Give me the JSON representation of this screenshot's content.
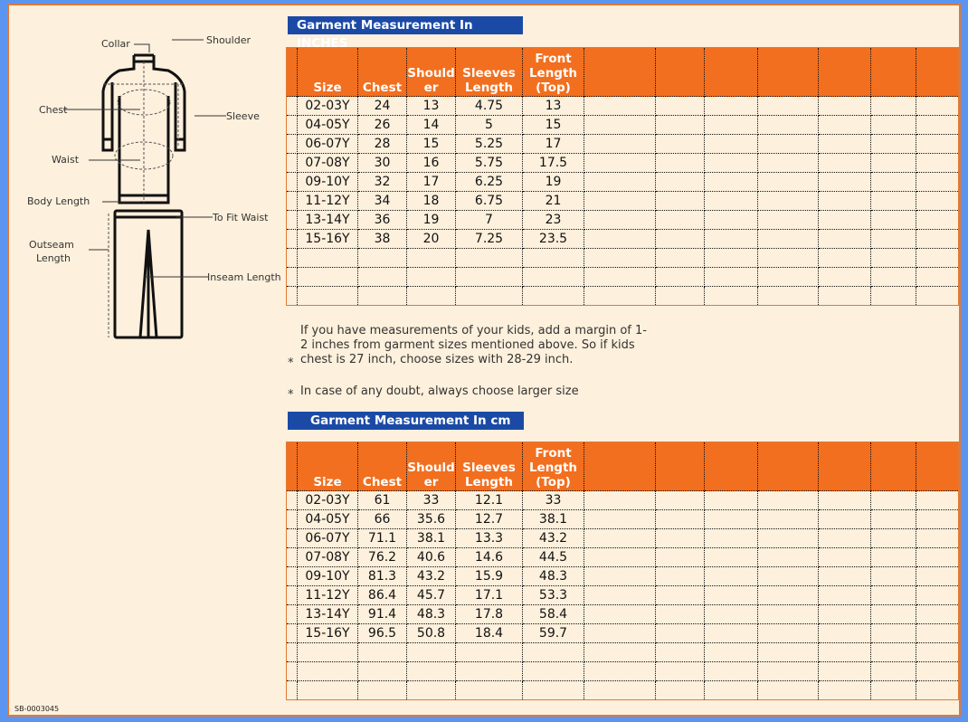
{
  "diagram": {
    "labels": {
      "collar": "Collar",
      "shoulder": "Shoulder",
      "chest": "Chest",
      "sleeve": "Sleeve",
      "waist": "Waist",
      "body_length": "Body Length",
      "to_fit_waist": "To Fit Waist",
      "outseam_1": "Outseam",
      "outseam_2": "Length",
      "inseam": "Inseam Length"
    }
  },
  "inches": {
    "title": "Garment Measurement In INCHES",
    "headers": [
      "Size",
      "Chest",
      "Should er",
      "Sleeves Length",
      "Front Length (Top)"
    ],
    "rows": [
      [
        "02-03Y",
        "24",
        "13",
        "4.75",
        "13"
      ],
      [
        "04-05Y",
        "26",
        "14",
        "5",
        "15"
      ],
      [
        "06-07Y",
        "28",
        "15",
        "5.25",
        "17"
      ],
      [
        "07-08Y",
        "30",
        "16",
        "5.75",
        "17.5"
      ],
      [
        "09-10Y",
        "32",
        "17",
        "6.25",
        "19"
      ],
      [
        "11-12Y",
        "34",
        "18",
        "6.75",
        "21"
      ],
      [
        "13-14Y",
        "36",
        "19",
        "7",
        "23"
      ],
      [
        "15-16Y",
        "38",
        "20",
        "7.25",
        "23.5"
      ]
    ]
  },
  "notes": [
    "If you have measurements of your kids, add a margin of 1-2 inches from garment sizes mentioned above. So if kids chest is 27 inch, choose sizes with 28-29 inch.",
    "In case of any doubt, always choose larger size"
  ],
  "note_marker": "*",
  "cm": {
    "title": "Garment Measurement In cm",
    "headers": [
      "Size",
      "Chest",
      "Should er",
      "Sleeves Length",
      "Front Length (Top)"
    ],
    "rows": [
      [
        "02-03Y",
        "61",
        "33",
        "12.1",
        "33"
      ],
      [
        "04-05Y",
        "66",
        "35.6",
        "12.7",
        "38.1"
      ],
      [
        "06-07Y",
        "71.1",
        "38.1",
        "13.3",
        "43.2"
      ],
      [
        "07-08Y",
        "76.2",
        "40.6",
        "14.6",
        "44.5"
      ],
      [
        "09-10Y",
        "81.3",
        "43.2",
        "15.9",
        "48.3"
      ],
      [
        "11-12Y",
        "86.4",
        "45.7",
        "17.1",
        "53.3"
      ],
      [
        "13-14Y",
        "91.4",
        "48.3",
        "17.8",
        "58.4"
      ],
      [
        "15-16Y",
        "96.5",
        "50.8",
        "18.4",
        "59.7"
      ]
    ]
  },
  "code": "SB-0003045",
  "colors": {
    "frame": "#5b95f0",
    "header": "#f26f1f",
    "title_bg": "#1b4aa6",
    "page_bg": "#fdf0dc"
  }
}
